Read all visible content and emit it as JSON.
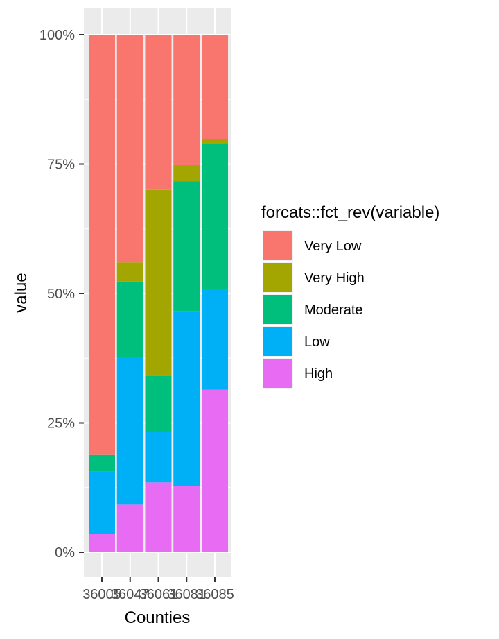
{
  "chart_data": {
    "type": "bar",
    "stacked": true,
    "xlabel": "Counties",
    "ylabel": "value",
    "y_ticks": [
      "0%",
      "25%",
      "50%",
      "75%",
      "100%"
    ],
    "ylim": [
      0,
      1
    ],
    "grid": true,
    "legend_placement": "right",
    "legend_title": "forcats::fct_rev(variable)",
    "categories": [
      "36005",
      "36047",
      "36061",
      "36081",
      "36085"
    ],
    "series": [
      {
        "name": "High",
        "color": "#E76BF3",
        "values": [
          0.035,
          0.092,
          0.135,
          0.128,
          0.314
        ]
      },
      {
        "name": "Low",
        "color": "#00B0F6",
        "values": [
          0.121,
          0.285,
          0.097,
          0.338,
          0.195
        ]
      },
      {
        "name": "Moderate",
        "color": "#00BF7D",
        "values": [
          0.032,
          0.146,
          0.109,
          0.251,
          0.28
        ]
      },
      {
        "name": "Very High",
        "color": "#A3A500",
        "values": [
          0.0,
          0.037,
          0.359,
          0.031,
          0.009
        ]
      },
      {
        "name": "Very Low",
        "color": "#F8766D",
        "values": [
          0.812,
          0.44,
          0.3,
          0.252,
          0.202
        ]
      }
    ],
    "legend_order": [
      "Very Low",
      "Very High",
      "Moderate",
      "Low",
      "High"
    ]
  }
}
